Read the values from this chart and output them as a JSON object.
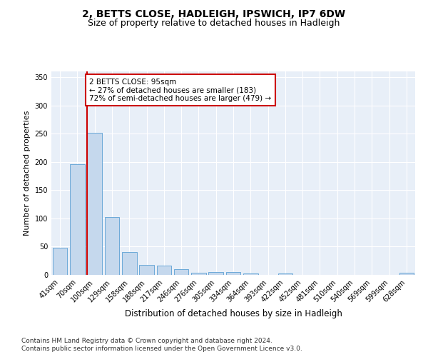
{
  "title": "2, BETTS CLOSE, HADLEIGH, IPSWICH, IP7 6DW",
  "subtitle": "Size of property relative to detached houses in Hadleigh",
  "xlabel": "Distribution of detached houses by size in Hadleigh",
  "ylabel": "Number of detached properties",
  "categories": [
    "41sqm",
    "70sqm",
    "100sqm",
    "129sqm",
    "158sqm",
    "188sqm",
    "217sqm",
    "246sqm",
    "276sqm",
    "305sqm",
    "334sqm",
    "364sqm",
    "393sqm",
    "422sqm",
    "452sqm",
    "481sqm",
    "510sqm",
    "540sqm",
    "569sqm",
    "599sqm",
    "628sqm"
  ],
  "values": [
    48,
    196,
    252,
    102,
    41,
    18,
    17,
    10,
    4,
    5,
    5,
    3,
    0,
    3,
    0,
    0,
    0,
    0,
    0,
    0,
    4
  ],
  "bar_color": "#c5d8ed",
  "bar_edge_color": "#5a9fd4",
  "marker_bar_index": 2,
  "annotation_title": "2 BETTS CLOSE: 95sqm",
  "annotation_line1": "← 27% of detached houses are smaller (183)",
  "annotation_line2": "72% of semi-detached houses are larger (479) →",
  "annotation_box_color": "#ffffff",
  "annotation_box_edge_color": "#cc0000",
  "marker_line_color": "#cc0000",
  "ylim": [
    0,
    360
  ],
  "yticks": [
    0,
    50,
    100,
    150,
    200,
    250,
    300,
    350
  ],
  "background_color": "#ffffff",
  "plot_bg_color": "#e8eff8",
  "footer_line1": "Contains HM Land Registry data © Crown copyright and database right 2024.",
  "footer_line2": "Contains public sector information licensed under the Open Government Licence v3.0.",
  "title_fontsize": 10,
  "subtitle_fontsize": 9,
  "xlabel_fontsize": 8.5,
  "ylabel_fontsize": 8,
  "tick_fontsize": 7,
  "annotation_fontsize": 7.5,
  "footer_fontsize": 6.5
}
